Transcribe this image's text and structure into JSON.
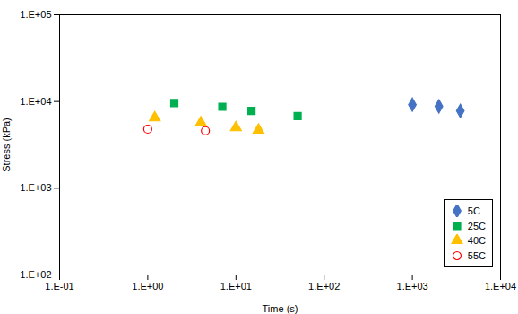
{
  "chart_data": {
    "type": "scatter",
    "xlabel": "Time (s)",
    "ylabel": "Stress (kPa)",
    "log": true,
    "xlim": [
      0.1,
      10000
    ],
    "ylim": [
      100,
      100000
    ],
    "xticks": [
      {
        "value": 0.1,
        "label": "1.E-01"
      },
      {
        "value": 1,
        "label": "1.E+00"
      },
      {
        "value": 10,
        "label": "1.E+01"
      },
      {
        "value": 100,
        "label": "1.E+02"
      },
      {
        "value": 1000,
        "label": "1.E+03"
      },
      {
        "value": 10000,
        "label": "1.E+04"
      }
    ],
    "yticks": [
      {
        "value": 100,
        "label": "1.E+02"
      },
      {
        "value": 1000,
        "label": "1.E+03"
      },
      {
        "value": 10000,
        "label": "1.E+04"
      },
      {
        "value": 100000,
        "label": "1.E+05"
      }
    ],
    "grid": false,
    "legend": "lower right",
    "series": [
      {
        "name": "5C",
        "color": "#4472C4",
        "marker": "diamond",
        "x": [
          1000,
          2000,
          3500
        ],
        "values": [
          9200,
          8800,
          7800
        ]
      },
      {
        "name": "25C",
        "color": "#00B050",
        "marker": "square",
        "x": [
          2.0,
          7.0,
          15.0,
          50.0
        ],
        "values": [
          9600,
          8700,
          7800,
          6800
        ]
      },
      {
        "name": "40C",
        "color": "#FFC000",
        "marker": "triangle",
        "x": [
          1.2,
          4.0,
          10.0,
          18.0
        ],
        "values": [
          6500,
          5700,
          5000,
          4700
        ]
      },
      {
        "name": "55C",
        "color": "#FF0000",
        "marker": "circle-open",
        "x": [
          1.0,
          4.5
        ],
        "values": [
          4800,
          4600
        ]
      }
    ]
  }
}
